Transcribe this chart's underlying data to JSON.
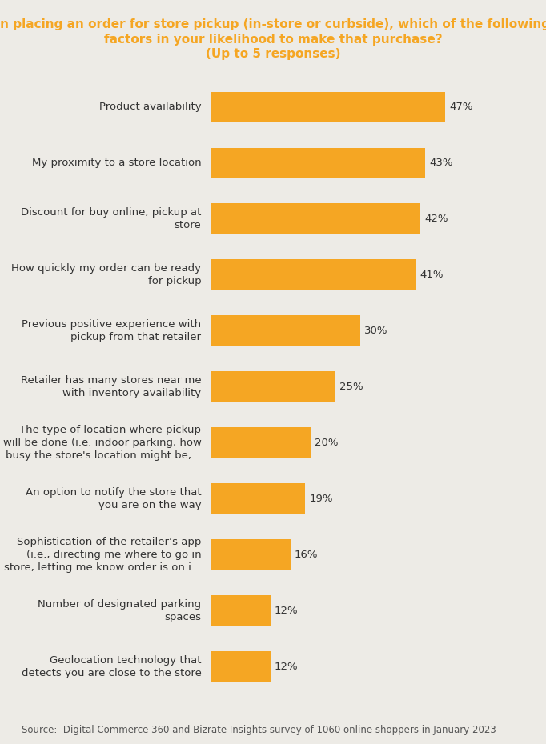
{
  "title_line1": "When placing an order for store pickup (in-store or curbside), which of the following are",
  "title_line2": "factors in your likelihood to make that purchase?",
  "title_line3": "(Up to 5 responses)",
  "title_color": "#F5A623",
  "bar_color": "#F5A623",
  "background_color": "#EDEBE6",
  "categories": [
    "Product availability",
    "My proximity to a store location",
    "Discount for buy online, pickup at\nstore",
    "How quickly my order can be ready\nfor pickup",
    "Previous positive experience with\npickup from that retailer",
    "Retailer has many stores near me\nwith inventory availability",
    "The type of location where pickup\nwill be done (i.e. indoor parking, how\nbusy the store's location might be,...",
    "An option to notify the store that\nyou are on the way",
    "Sophistication of the retailer’s app\n(i.e., directing me where to go in\nstore, letting me know order is on i...",
    "Number of designated parking\nspaces",
    "Geolocation technology that\ndetects you are close to the store"
  ],
  "values": [
    47,
    43,
    42,
    41,
    30,
    25,
    20,
    19,
    16,
    12,
    12
  ],
  "source_text": "Source:  Digital Commerce 360 and Bizrate Insights survey of 1060 online shoppers in January 2023",
  "source_color": "#555555",
  "source_fontsize": 8.5,
  "label_fontsize": 9.5,
  "title_fontsize": 11,
  "value_fontsize": 9.5,
  "xlim": [
    0,
    60
  ],
  "bar_height": 0.55
}
